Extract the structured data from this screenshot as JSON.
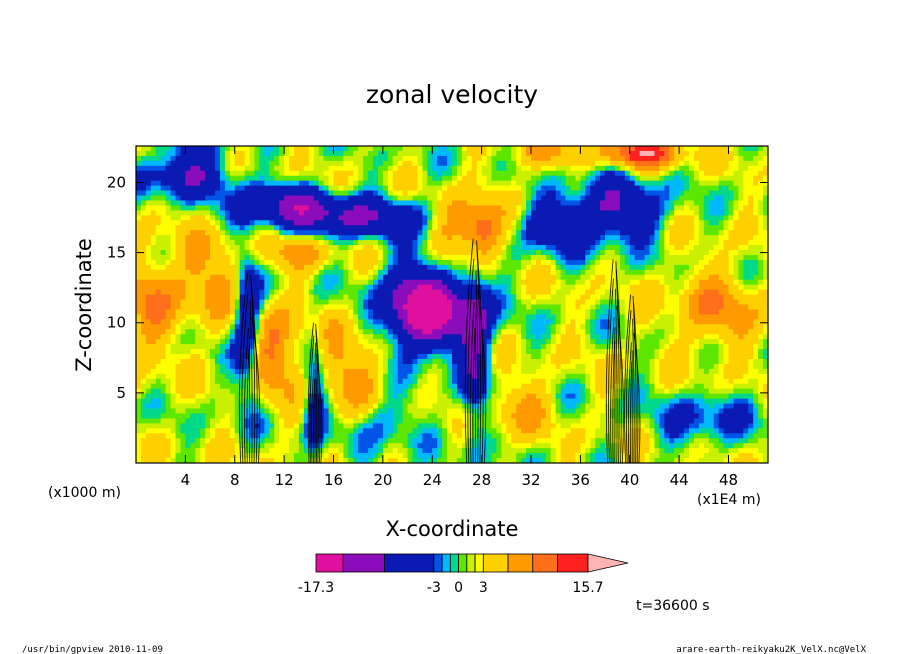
{
  "chart_data": {
    "type": "heatmap",
    "title": "zonal velocity",
    "xlabel": "X-coordinate",
    "ylabel": "Z-coordinate",
    "x_unit_left": "(x1000 m)",
    "x_unit_right": "(x1E4 m)",
    "xlim": [
      0,
      51.2
    ],
    "ylim": [
      0,
      22.6
    ],
    "x_ticks": [
      4,
      8,
      12,
      16,
      20,
      24,
      28,
      32,
      36,
      40,
      44,
      48
    ],
    "y_ticks": [
      5,
      10,
      15,
      20
    ],
    "colorbar": {
      "min_label": "-17.3",
      "max_label": "15.7",
      "tick_labels": [
        {
          "value": -3,
          "label": "-3"
        },
        {
          "value": 0,
          "label": "0"
        },
        {
          "value": 3,
          "label": "3"
        }
      ],
      "levels": [
        -17.3,
        -14,
        -9,
        -3,
        -2,
        -1,
        0,
        1,
        2,
        3,
        6,
        9,
        12,
        15.7
      ],
      "colors": [
        "#e0109f",
        "#8a0cba",
        "#0a1ab3",
        "#0055e6",
        "#00b8ff",
        "#00d98a",
        "#5ce600",
        "#c8f000",
        "#ffff00",
        "#ffd000",
        "#ff9a00",
        "#ff6e1a",
        "#ff2020",
        "#ff8c8c"
      ],
      "extend_color": "#ffb4b4"
    },
    "annotation_time": "t=36600 s"
  },
  "footer": {
    "left": "/usr/bin/gpview   2010-11-09",
    "right": "arare-earth-reikyaku2K_VelX.nc@VelX"
  }
}
